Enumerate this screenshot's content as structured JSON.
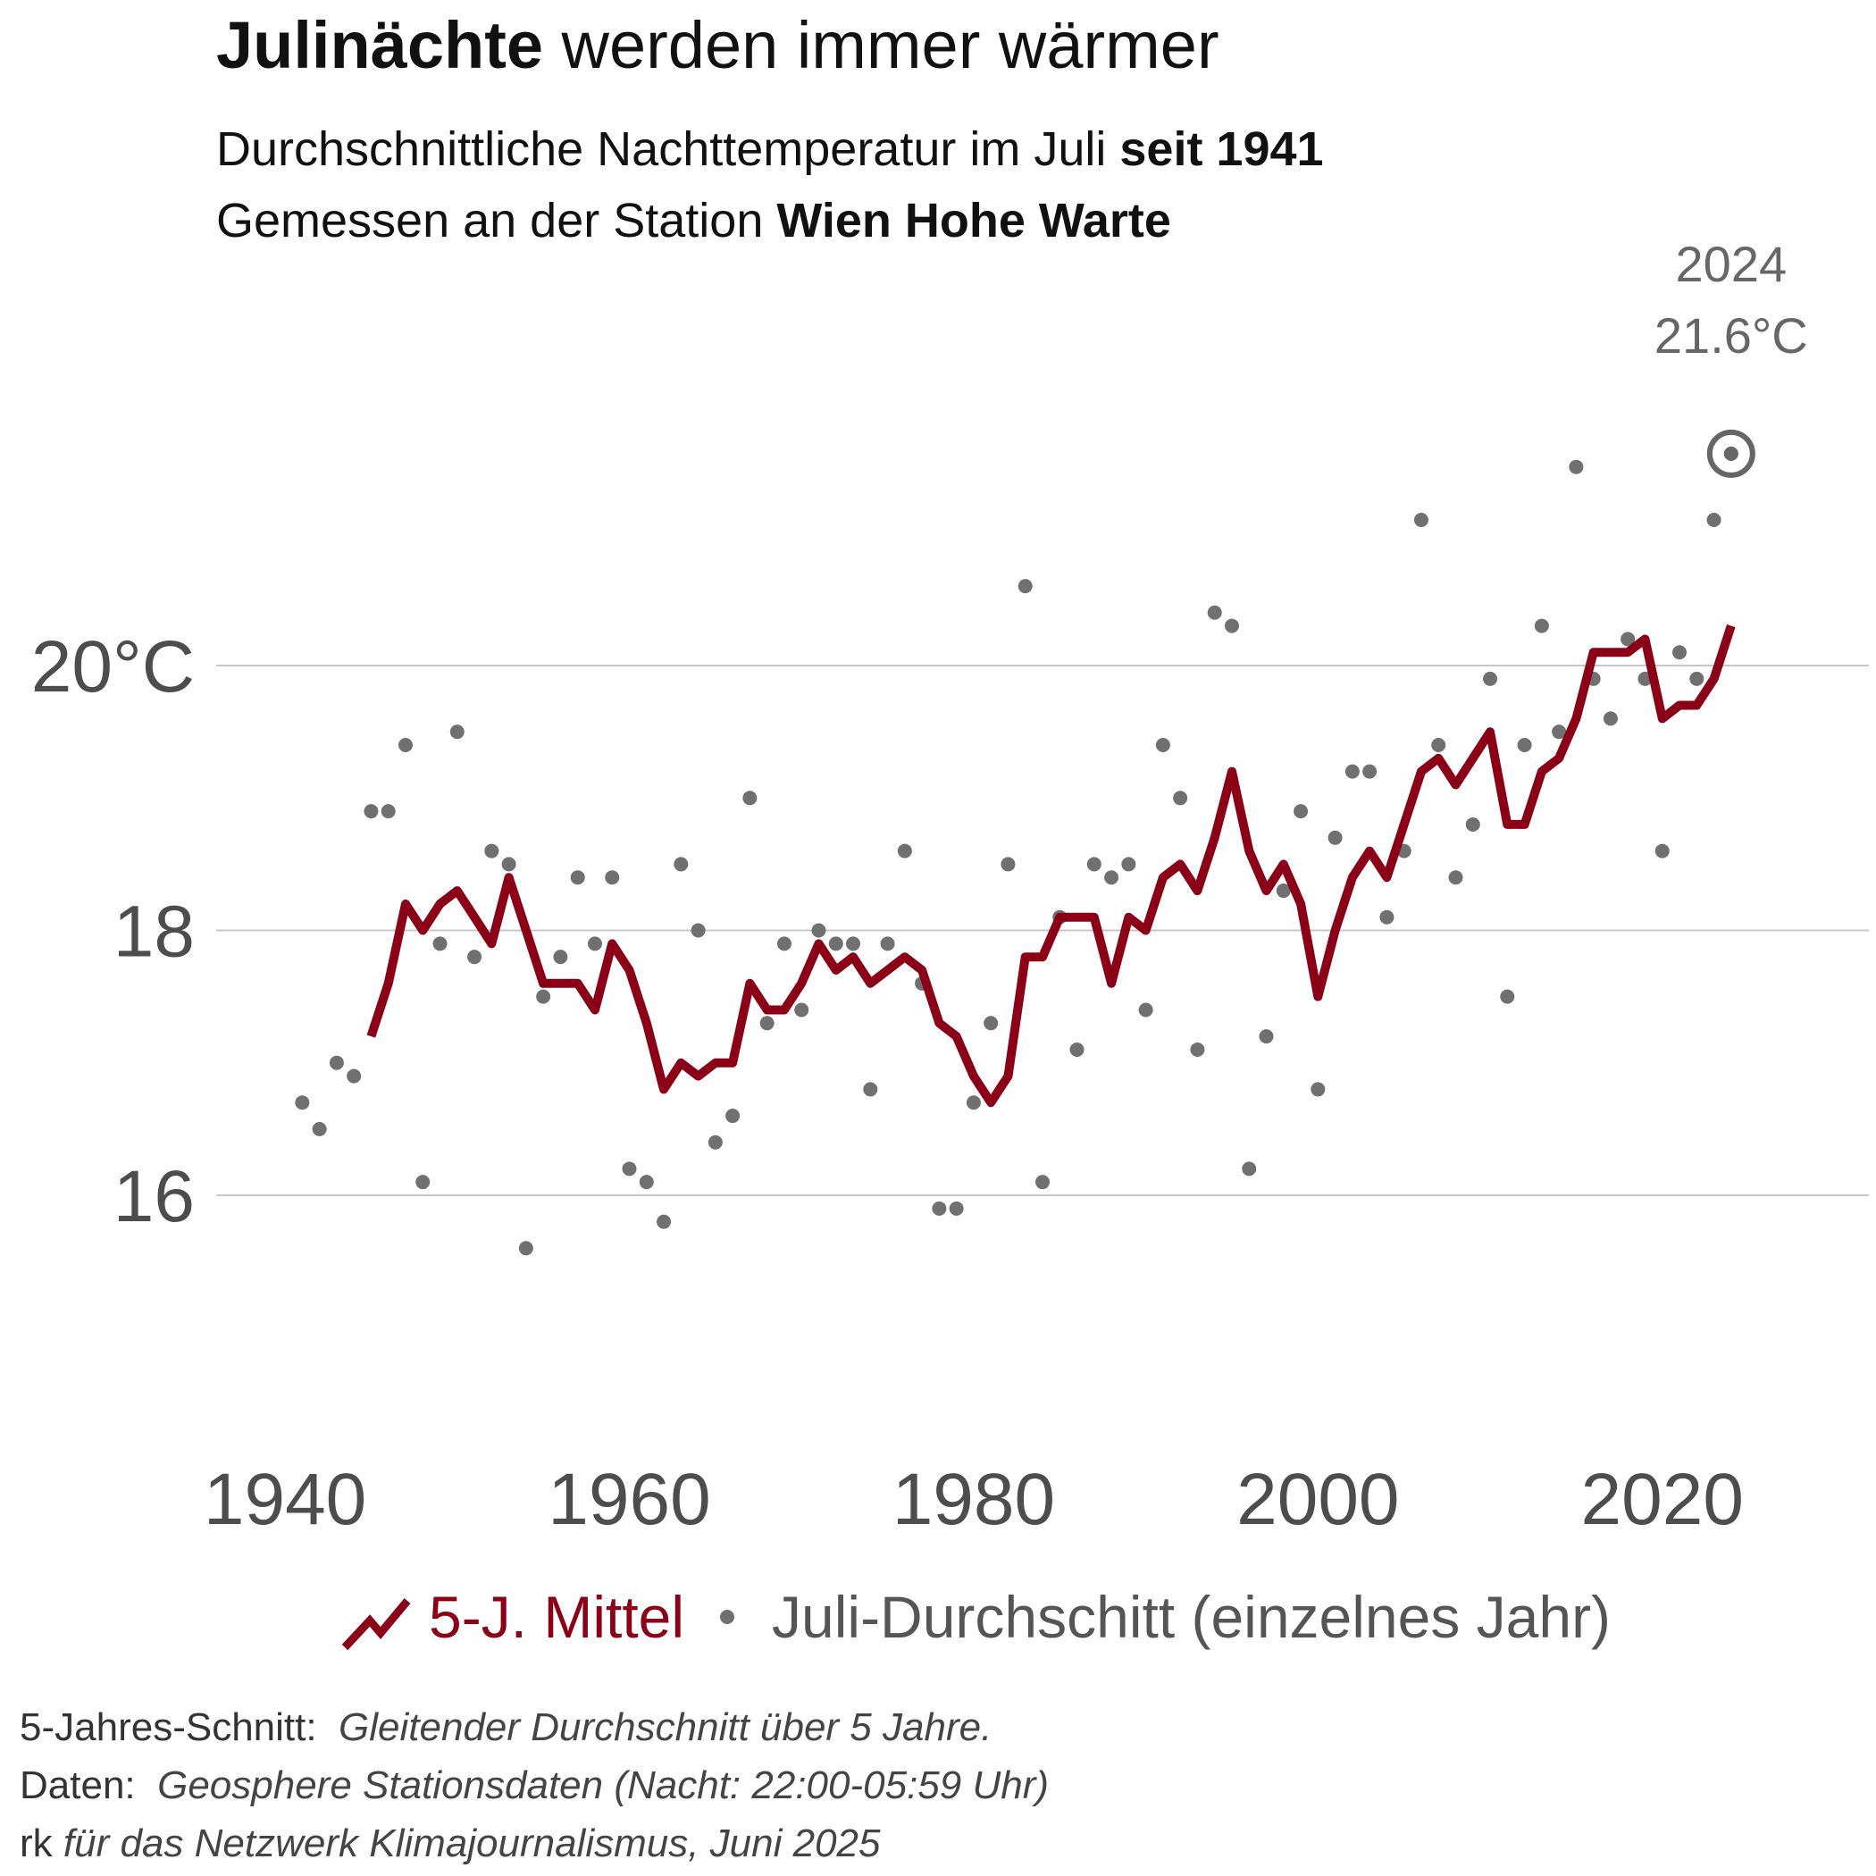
{
  "header": {
    "title_bold": "Julinächte",
    "title_rest": " werden immer wärmer",
    "subtitle1_rest": "Durchschnittliche Nachttemperatur im Juli ",
    "subtitle1_bold": "seit 1941",
    "subtitle2_rest": "Gemessen an der Station ",
    "subtitle2_bold": "Wien Hohe Warte"
  },
  "legend": {
    "line_label": "5-J. Mittel",
    "dot_label": "Juli-Durchschitt (einzelnes Jahr)"
  },
  "notes": {
    "n1_label": "5-Jahres-Schnitt:",
    "n1_text": "Gleitender Durchschnitt über 5 Jahre.",
    "n2_label": "Daten:",
    "n2_text": "Geosphere Stationsdaten (Nacht: 22:00-05:59 Uhr)",
    "n3_label": "rk",
    "n3_text": "für das Netzwerk Klimajournalismus, Juni 2025"
  },
  "colors": {
    "line": "#8b0016",
    "dots": "#707070",
    "grid": "#c8c8c8",
    "tick_text": "#4d4d4d"
  },
  "chart_data": {
    "type": "line+scatter",
    "xlim": [
      1936,
      2032
    ],
    "ylim": [
      14.3,
      22.8
    ],
    "x_ticks": [
      1940,
      1960,
      1980,
      2000,
      2020
    ],
    "x_tick_labels": [
      "1940",
      "1960",
      "1980",
      "2000",
      "2020"
    ],
    "y_ticks": [
      16,
      18,
      20
    ],
    "y_tick_labels": [
      "16",
      "18",
      "20°C"
    ],
    "grid": "horizontal",
    "legend_position": "bottom",
    "annotation": {
      "year": 2024,
      "value": 21.6,
      "label_line1": "2024",
      "label_line2": "21.6°C"
    },
    "series": [
      {
        "name": "Juli-Durchschitt (einzelnes Jahr)",
        "kind": "scatter",
        "x": [
          1941,
          1942,
          1943,
          1944,
          1945,
          1946,
          1947,
          1948,
          1949,
          1950,
          1951,
          1952,
          1953,
          1954,
          1955,
          1956,
          1957,
          1958,
          1959,
          1960,
          1961,
          1962,
          1963,
          1964,
          1965,
          1966,
          1967,
          1968,
          1969,
          1970,
          1971,
          1972,
          1973,
          1974,
          1975,
          1976,
          1977,
          1978,
          1979,
          1980,
          1981,
          1982,
          1983,
          1984,
          1985,
          1986,
          1987,
          1988,
          1989,
          1990,
          1991,
          1992,
          1993,
          1994,
          1995,
          1996,
          1997,
          1998,
          1999,
          2000,
          2001,
          2002,
          2003,
          2004,
          2005,
          2006,
          2007,
          2008,
          2009,
          2010,
          2011,
          2012,
          2013,
          2014,
          2015,
          2016,
          2017,
          2018,
          2019,
          2020,
          2021,
          2022,
          2023,
          2024
        ],
        "y": [
          16.7,
          16.5,
          17.0,
          16.9,
          18.9,
          18.9,
          19.4,
          16.1,
          17.9,
          19.5,
          17.8,
          18.6,
          18.5,
          15.6,
          17.5,
          17.8,
          18.4,
          17.9,
          18.4,
          16.2,
          16.1,
          15.8,
          18.5,
          18.0,
          16.4,
          16.6,
          19.0,
          17.3,
          17.9,
          17.4,
          18.0,
          17.9,
          17.9,
          16.8,
          17.9,
          18.6,
          17.6,
          15.9,
          15.9,
          16.7,
          17.3,
          18.5,
          20.6,
          16.1,
          18.1,
          17.1,
          18.5,
          18.4,
          18.5,
          17.4,
          19.4,
          19.0,
          17.1,
          20.4,
          20.3,
          16.2,
          17.2,
          18.3,
          18.9,
          16.8,
          18.7,
          19.2,
          19.2,
          18.1,
          18.6,
          21.1,
          19.4,
          18.4,
          18.8,
          19.9,
          17.5,
          19.4,
          20.3,
          19.5,
          21.5,
          19.9,
          19.6,
          20.2,
          19.9,
          18.6,
          20.1,
          19.9,
          21.1,
          21.6
        ]
      },
      {
        "name": "5-J. Mittel",
        "kind": "line",
        "x": [
          1945,
          1946,
          1947,
          1948,
          1949,
          1950,
          1951,
          1952,
          1953,
          1954,
          1955,
          1956,
          1957,
          1958,
          1959,
          1960,
          1961,
          1962,
          1963,
          1964,
          1965,
          1966,
          1967,
          1968,
          1969,
          1970,
          1971,
          1972,
          1973,
          1974,
          1975,
          1976,
          1977,
          1978,
          1979,
          1980,
          1981,
          1982,
          1983,
          1984,
          1985,
          1986,
          1987,
          1988,
          1989,
          1990,
          1991,
          1992,
          1993,
          1994,
          1995,
          1996,
          1997,
          1998,
          1999,
          2000,
          2001,
          2002,
          2003,
          2004,
          2005,
          2006,
          2007,
          2008,
          2009,
          2010,
          2011,
          2012,
          2013,
          2014,
          2015,
          2016,
          2017,
          2018,
          2019,
          2020,
          2021,
          2022,
          2023,
          2024
        ],
        "y": [
          17.2,
          17.6,
          18.2,
          18.0,
          18.2,
          18.3,
          18.1,
          17.9,
          18.4,
          18.0,
          17.6,
          17.6,
          17.6,
          17.4,
          17.9,
          17.7,
          17.3,
          16.8,
          17.0,
          16.9,
          17.0,
          17.0,
          17.6,
          17.4,
          17.4,
          17.6,
          17.9,
          17.7,
          17.8,
          17.6,
          17.7,
          17.8,
          17.7,
          17.3,
          17.2,
          16.9,
          16.7,
          16.9,
          17.8,
          17.8,
          18.1,
          18.1,
          18.1,
          17.6,
          18.1,
          18.0,
          18.4,
          18.5,
          18.3,
          18.7,
          19.2,
          18.6,
          18.3,
          18.5,
          18.2,
          17.5,
          18.0,
          18.4,
          18.6,
          18.4,
          18.8,
          19.2,
          19.3,
          19.1,
          19.3,
          19.5,
          18.8,
          18.8,
          19.2,
          19.3,
          19.6,
          20.1,
          20.1,
          20.1,
          20.2,
          19.6,
          19.7,
          19.7,
          19.9,
          20.3
        ]
      }
    ]
  }
}
